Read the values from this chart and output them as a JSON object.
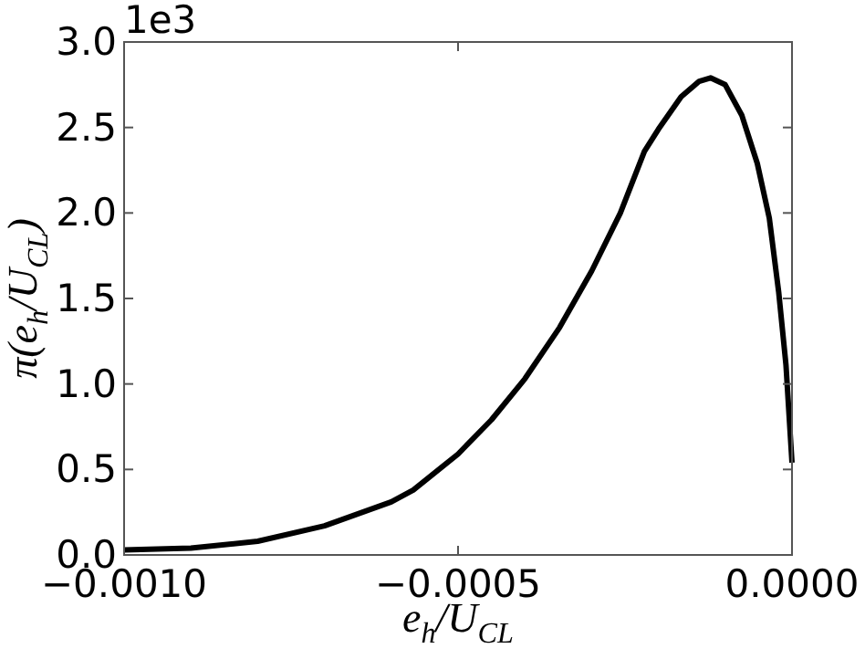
{
  "chart_data": {
    "type": "line",
    "xlabel": "e$_{h}$/U$_{CL}$",
    "ylabel": "π(e$_{h}$/U$_{CL}$)",
    "annotations": [
      "1e3"
    ],
    "x": [
      -0.001,
      -0.0009,
      -0.0008,
      -0.0007,
      -0.0006,
      -0.000567,
      -0.0005,
      -0.00045,
      -0.0004,
      -0.000348,
      -0.0003,
      -0.000257,
      -0.000221,
      -0.0002,
      -0.000166,
      -0.000139,
      -0.000122,
      -0.0001,
      -7.5e-05,
      -5.2e-05,
      -3.4e-05,
      -2e-05,
      -9e-06,
      0
    ],
    "series": [
      {
        "color": "#000000",
        "values": [
          0.03,
          0.04,
          0.08,
          0.17,
          0.31,
          0.38,
          0.59,
          0.79,
          1.03,
          1.33,
          1.66,
          2.0,
          2.36,
          2.49,
          2.68,
          2.77,
          2.79,
          2.75,
          2.57,
          2.29,
          1.97,
          1.54,
          1.11,
          0.54
        ]
      }
    ],
    "xlim": [
      -0.001,
      0
    ],
    "ylim": [
      0,
      3
    ],
    "xticks": [
      {
        "value": -0.001,
        "label": "−0.0010"
      },
      {
        "value": -0.0005,
        "label": "−0.0005"
      },
      {
        "value": 0,
        "label": "0.0000"
      }
    ],
    "yticks": [
      {
        "value": 0,
        "label": "0.0"
      },
      {
        "value": 0.5,
        "label": "0.5"
      },
      {
        "value": 1,
        "label": "1.0"
      },
      {
        "value": 1.5,
        "label": "1.5"
      },
      {
        "value": 2,
        "label": "2.0"
      },
      {
        "value": 2.5,
        "label": "2.5"
      },
      {
        "value": 3,
        "label": "3.0"
      }
    ],
    "grid": false,
    "marker": "none",
    "line_style": "solid"
  }
}
